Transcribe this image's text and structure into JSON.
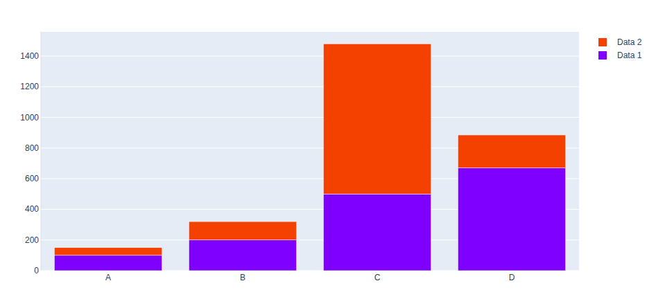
{
  "chart_data": {
    "type": "bar",
    "stacked": true,
    "categories": [
      "A",
      "B",
      "C",
      "D"
    ],
    "series": [
      {
        "name": "Data 1",
        "color": "#7f00ff",
        "values": [
          100,
          200,
          500,
          670
        ]
      },
      {
        "name": "Data 2",
        "color": "#f44100",
        "values": [
          50,
          120,
          980,
          215
        ]
      }
    ],
    "ylim": [
      0,
      1558
    ],
    "yticks": [
      0,
      200,
      400,
      600,
      800,
      1000,
      1200,
      1400
    ],
    "grid": true,
    "legend": "top-right"
  }
}
